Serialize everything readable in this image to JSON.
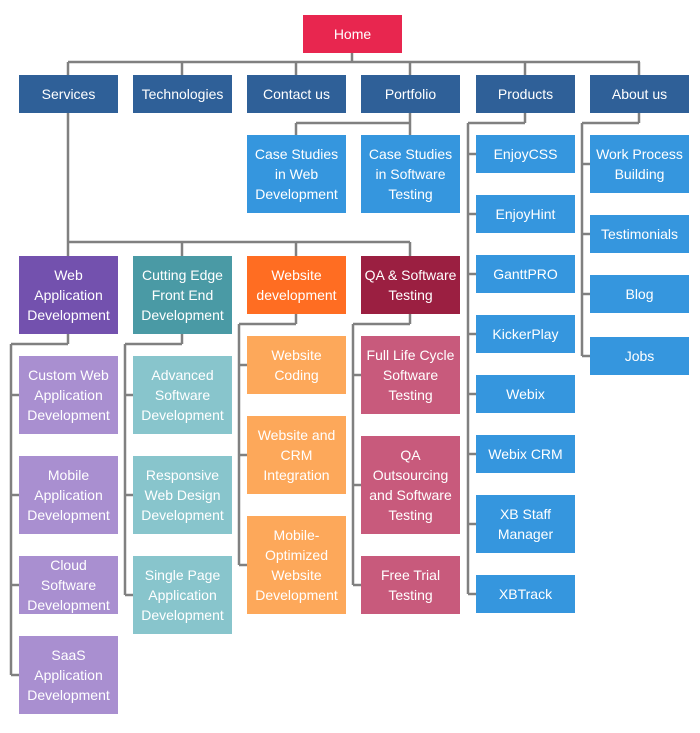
{
  "colors": {
    "home": "#e8264f",
    "section": "#2f6098",
    "leaf_blue": "#3596de",
    "purple_dark": "#7351ae",
    "purple_light": "#a98fd0",
    "teal_dark": "#4a9aa5",
    "teal_light": "#88c5cc",
    "orange_dark": "#ff6d22",
    "orange_light": "#fda85a",
    "crimson_dark": "#9b1f41",
    "crimson_light": "#c85a7c",
    "connector": "#808080"
  },
  "home": {
    "label": "Home"
  },
  "sections": [
    {
      "label": "Services",
      "children": [
        {
          "label": "Web Application Development",
          "children": [
            {
              "label": "Custom Web Application Development"
            },
            {
              "label": "Mobile Application Development"
            },
            {
              "label": "Cloud Software Development"
            },
            {
              "label": "SaaS Application Development"
            }
          ]
        },
        {
          "label": "Cutting Edge Front End Development",
          "children": [
            {
              "label": "Advanced Software Development"
            },
            {
              "label": "Responsive Web Design Development"
            },
            {
              "label": "Single Page Application Development"
            }
          ]
        },
        {
          "label": "Website development",
          "children": [
            {
              "label": "Website Coding"
            },
            {
              "label": "Website and CRM Integration"
            },
            {
              "label": "Mobile-Optimized Website Development"
            }
          ]
        },
        {
          "label": "QA & Software Testing",
          "children": [
            {
              "label": "Full Life Cycle Software Testing"
            },
            {
              "label": "QA Outsourcing and Software Testing"
            },
            {
              "label": "Free Trial Testing"
            }
          ]
        }
      ]
    },
    {
      "label": "Technologies"
    },
    {
      "label": "Contact us"
    },
    {
      "label": "Portfolio",
      "children": [
        {
          "label": "Case Studies in Web Development"
        },
        {
          "label": "Case Studies in Software Testing"
        }
      ]
    },
    {
      "label": "Products",
      "children": [
        {
          "label": "EnjoyCSS"
        },
        {
          "label": "EnjoyHint"
        },
        {
          "label": "GanttPRO"
        },
        {
          "label": "KickerPlay"
        },
        {
          "label": "Webix"
        },
        {
          "label": "Webix CRM"
        },
        {
          "label": "XB Staff Manager"
        },
        {
          "label": "XBTrack"
        }
      ]
    },
    {
      "label": "About us",
      "children": [
        {
          "label": "Work Process Building"
        },
        {
          "label": "Testimonials"
        },
        {
          "label": "Blog"
        },
        {
          "label": "Jobs"
        }
      ]
    }
  ]
}
